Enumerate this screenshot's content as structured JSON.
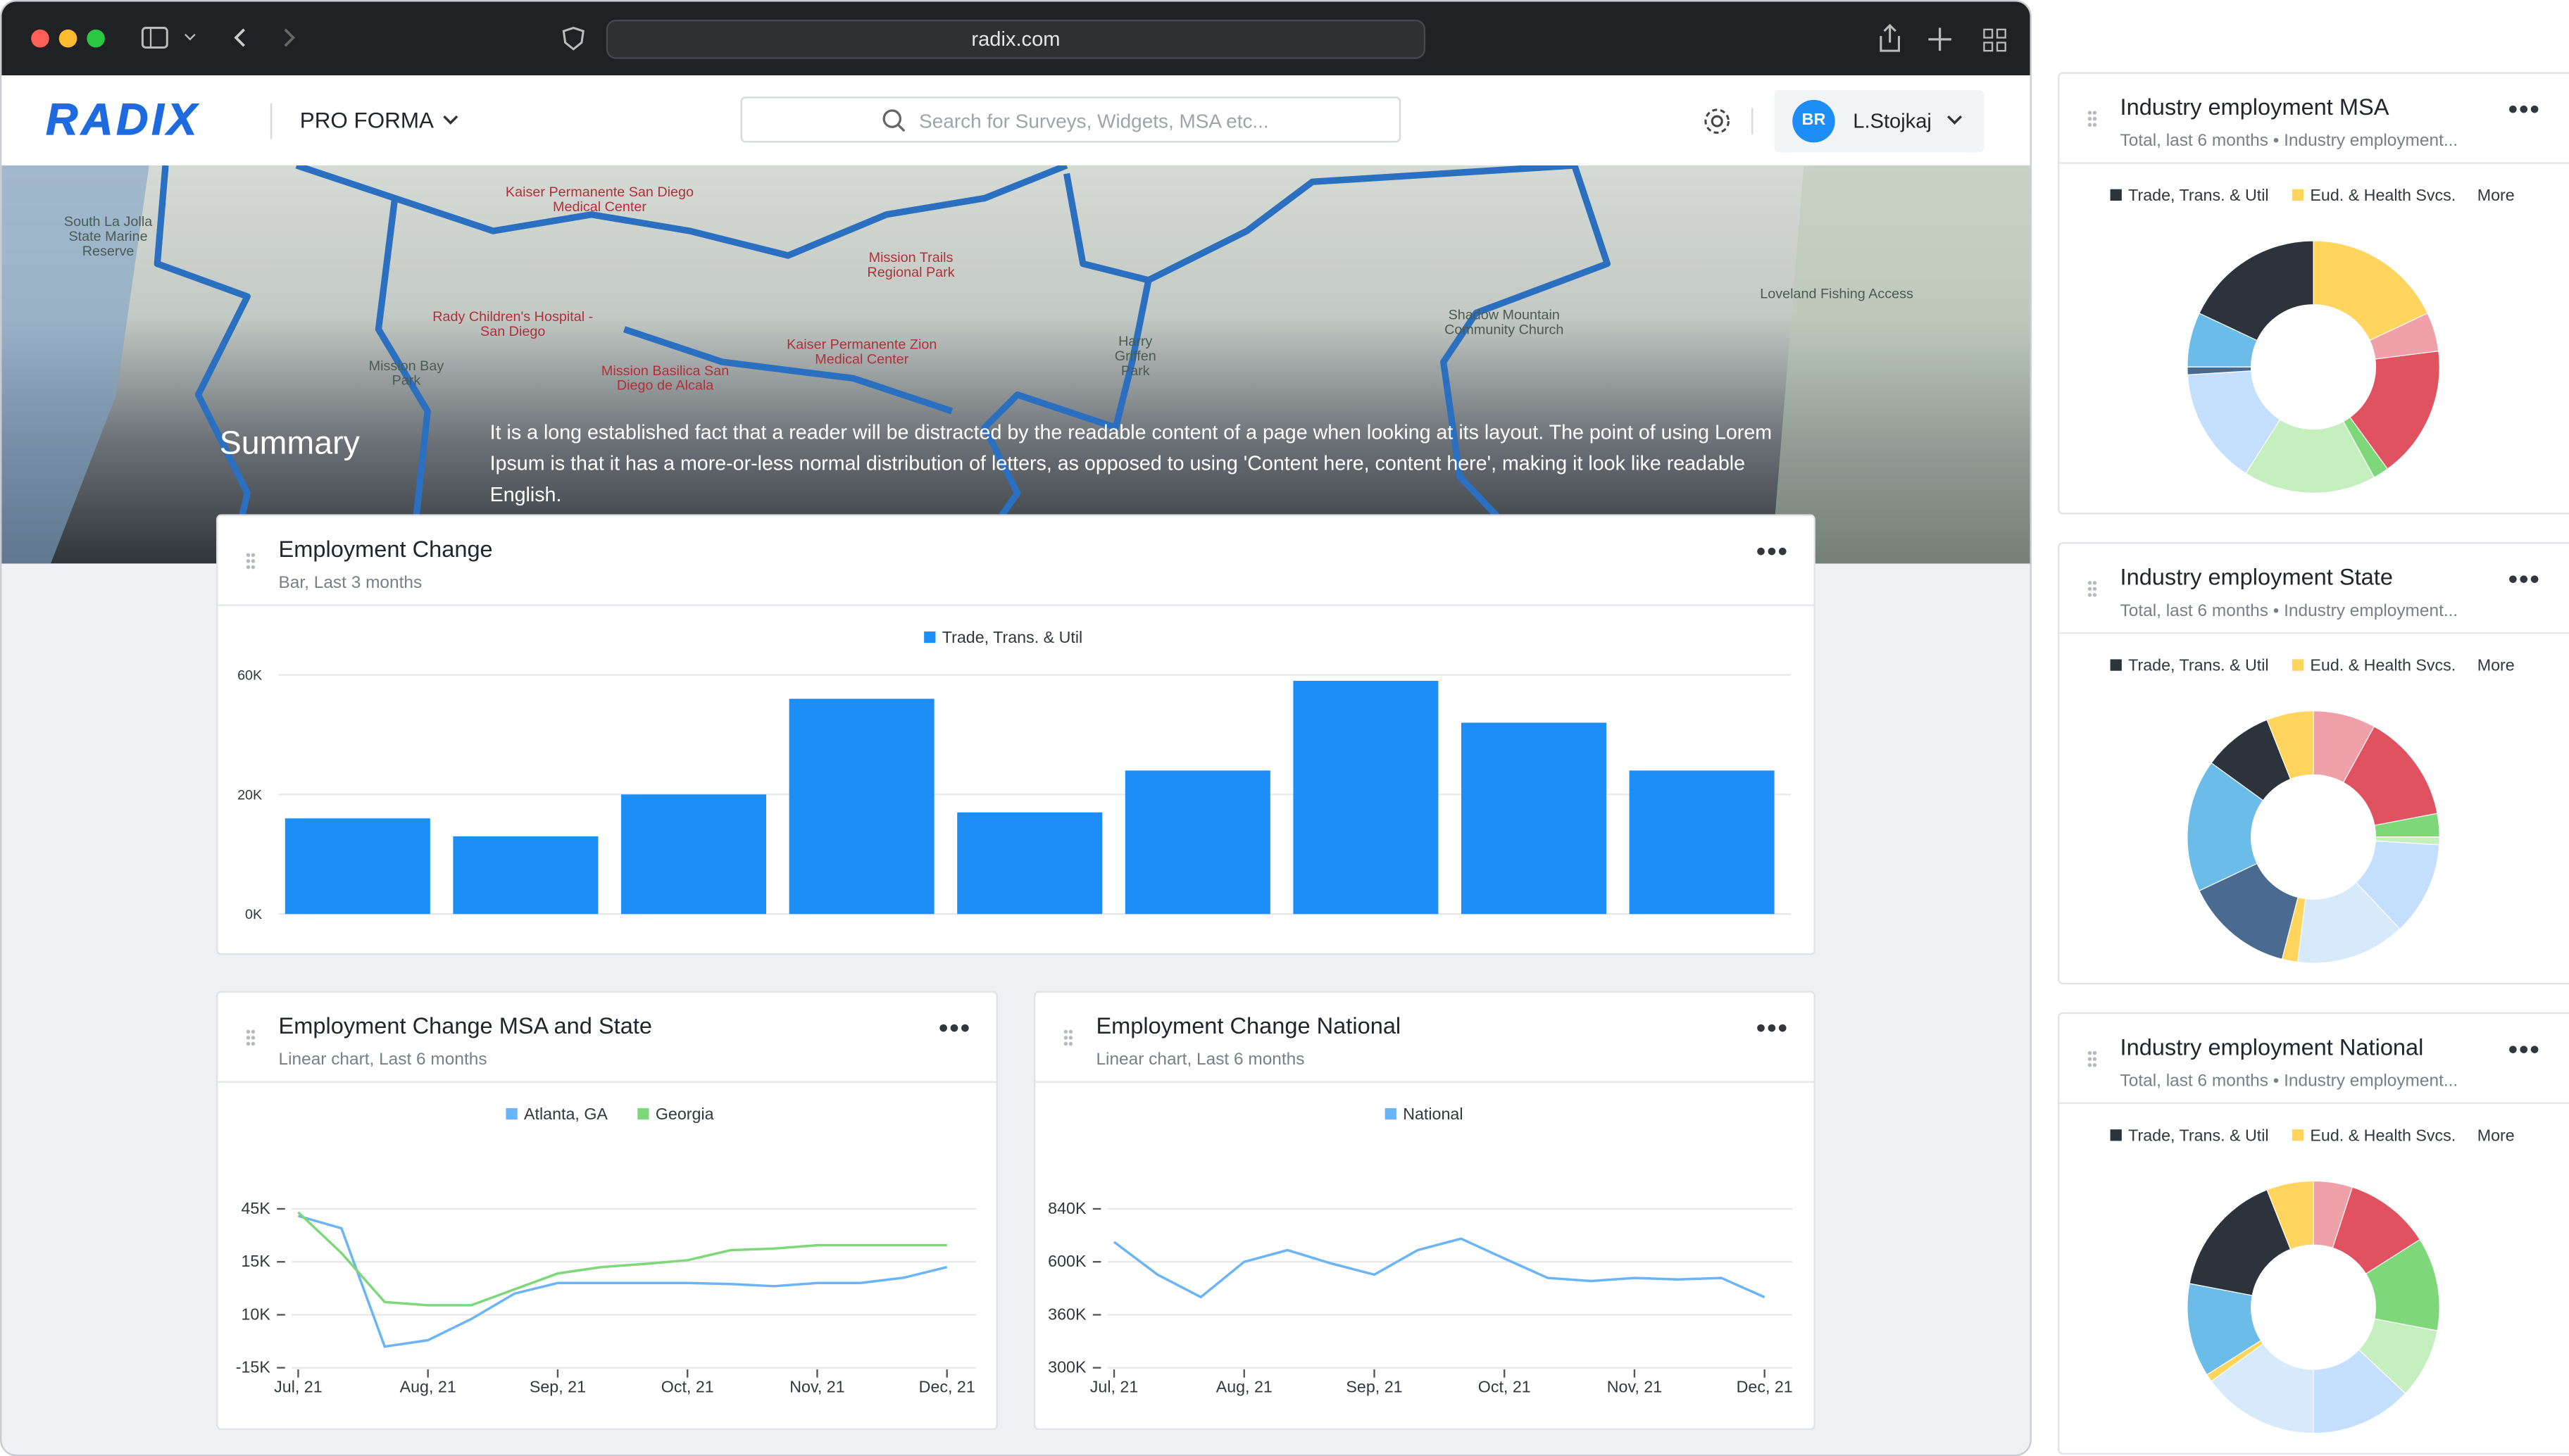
{
  "browser": {
    "url": "radix.com"
  },
  "header": {
    "logo": "RADIX",
    "product": "PRO FORMA",
    "search_placeholder": "Search for Surveys, Widgets, MSA etc...",
    "user_initials": "BR",
    "user_name": "L.Stojkaj"
  },
  "hero": {
    "title": "Summary",
    "text": "It is a long established fact that a reader will be distracted by the readable content of a page when looking at its layout. The point of using Lorem Ipsum is that it has a more-or-less normal distribution of letters, as opposed to using 'Content here, content here', making it look like readable English.",
    "map_labels": [
      "Kaiser Permanente San Diego Medical Center",
      "Mission Trails Regional Park",
      "Rady Children's Hospital - San Diego",
      "Kaiser Permanente Zion Medical Center",
      "Mission Basilica San Diego de Alcala",
      "Shadow Mountain Community Church",
      "Loveland Fishing Access",
      "Mission Bay Park",
      "South La Jolla State Marine Reserve",
      "Harry Griffen Park"
    ]
  },
  "widgets": [
    {
      "title": "Employment Change",
      "subtitle": "Bar, Last 3 months",
      "chart": {
        "type": "bar",
        "series": [
          {
            "name": "Trade, Trans. & Util",
            "color": "#1e8ef7",
            "values": [
              16000,
              13000,
              20000,
              52000,
              17000,
              28000,
              58000,
              44000,
              28000
            ]
          }
        ],
        "ylim": [
          0,
          60000
        ],
        "yticks": [
          {
            "value": 0,
            "label": "0K"
          },
          {
            "value": 20000,
            "label": "20K"
          },
          {
            "value": 60000,
            "label": "60K"
          }
        ],
        "grid": true
      }
    },
    {
      "title": "Employment Change MSA and State",
      "subtitle": "Linear chart, Last 6 months",
      "chart": {
        "type": "line",
        "categories": [
          "Jul, 21",
          null,
          null,
          "Aug, 21",
          null,
          null,
          "Sep, 21",
          null,
          null,
          "Oct, 21",
          null,
          null,
          "Nov, 21",
          null,
          null,
          "Dec, 21"
        ],
        "series": [
          {
            "name": "Atlanta, GA",
            "color": "#6bb4f5",
            "values": [
              41000,
              34000,
              -5000,
              -2000,
              8000,
              12000,
              13000,
              13000,
              13000,
              13000,
              12900,
              12700,
              13000,
              13000,
              13500,
              14500
            ]
          },
          {
            "name": "Georgia",
            "color": "#7ed87a",
            "values": [
              43100,
              20000,
              11200,
              10900,
              10900,
              12400,
              13900,
              14500,
              14800,
              15900,
              21600,
              22500,
              24400,
              24400,
              24400,
              24400
            ]
          }
        ],
        "ylim": [
          -15000,
          45000
        ],
        "yticks": [
          {
            "value": -15000,
            "label": "-15K"
          },
          {
            "value": 10000,
            "label": "10K"
          },
          {
            "value": 15000,
            "label": "15K"
          },
          {
            "value": 45000,
            "label": "45K"
          }
        ],
        "grid": true
      }
    },
    {
      "title": "Employment Change National",
      "subtitle": "Linear chart, Last 6 months",
      "chart": {
        "type": "line",
        "categories": [
          "Jul, 21",
          null,
          null,
          "Aug, 21",
          null,
          null,
          "Sep, 21",
          null,
          null,
          "Oct, 21",
          null,
          null,
          "Nov, 21",
          null,
          null,
          "Dec, 21"
        ],
        "series": [
          {
            "name": "National",
            "color": "#6bb4f5",
            "values": [
              690000,
              542000,
              440000,
              600000,
              653000,
              593000,
              542000,
              653000,
              705000,
              615000,
              527000,
              513000,
              527000,
              520000,
              527000,
              440000
            ]
          }
        ],
        "ylim": [
          300000,
          840000
        ],
        "yticks": [
          {
            "value": 300000,
            "label": "300K"
          },
          {
            "value": 360000,
            "label": "360K"
          },
          {
            "value": 600000,
            "label": "600K"
          },
          {
            "value": 840000,
            "label": "840K"
          }
        ],
        "grid": true
      }
    },
    {
      "title": "Industry employment MSA",
      "subtitle": "Total, last 6 months • Industry employment...",
      "chart": {
        "type": "donut",
        "legend": [
          "Trade, Trans. & Util",
          "Eud. & Health Svcs.",
          "More"
        ],
        "legend_colors": [
          "#2d333d",
          "#ffd55e"
        ],
        "values": [
          18,
          5,
          17,
          2,
          17,
          15,
          1,
          7,
          18
        ],
        "colors": [
          "#ffd55e",
          "#f0a0a8",
          "#e05260",
          "#7ed87a",
          "#c6efc0",
          "#c4dfff",
          "#4a6a90",
          "#6bbce8",
          "#2d333d"
        ]
      }
    },
    {
      "title": "Industry employment State",
      "subtitle": "Total, last 6 months • Industry employment...",
      "chart": {
        "type": "donut",
        "legend": [
          "Trade, Trans. & Util",
          "Eud. & Health Svcs.",
          "More"
        ],
        "legend_colors": [
          "#2d333d",
          "#ffd55e"
        ],
        "values": [
          8,
          14,
          3,
          1,
          12,
          14,
          2,
          14,
          17,
          9,
          6
        ],
        "colors": [
          "#f0a0a8",
          "#e05260",
          "#7ed87a",
          "#c6efc0",
          "#c4dfff",
          "#d6eafc",
          "#ffd55e",
          "#4a6a90",
          "#6bbce8",
          "#2d333d",
          "#ffd55e"
        ]
      }
    },
    {
      "title": "Industry employment National",
      "subtitle": "Total, last 6 months • Industry employment...",
      "chart": {
        "type": "donut",
        "legend": [
          "Trade, Trans. & Util",
          "Eud. & Health Svcs.",
          "More"
        ],
        "legend_colors": [
          "#2d333d",
          "#ffd55e"
        ],
        "values": [
          5,
          11,
          12,
          9,
          13,
          15,
          1,
          12,
          16,
          6
        ],
        "colors": [
          "#f0a0a8",
          "#e05260",
          "#7ed87a",
          "#c6efc0",
          "#c4dfff",
          "#d6eafc",
          "#ffd55e",
          "#6bbce8",
          "#2d333d",
          "#ffd55e"
        ]
      }
    }
  ]
}
